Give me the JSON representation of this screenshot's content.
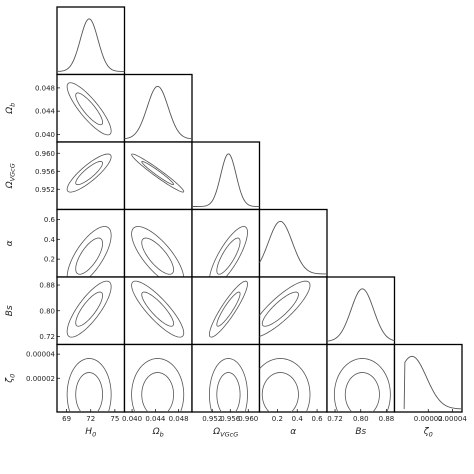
{
  "chart_data": {
    "type": "corner",
    "parameters": [
      {
        "key": "H0",
        "label": "H",
        "sub": "0",
        "range": [
          67.8,
          76.2
        ],
        "ticks": [
          69,
          72,
          75
        ],
        "tick_labels": [
          "69",
          "72",
          "75"
        ],
        "mean": 71.8,
        "sigma": 1.1
      },
      {
        "key": "Ob",
        "label": "Ω",
        "sub": "b",
        "range": [
          0.0387,
          0.0503
        ],
        "ticks": [
          0.04,
          0.044,
          0.048
        ],
        "tick_labels": [
          "0.040",
          "0.044",
          "0.048"
        ],
        "mean": 0.0444,
        "sigma": 0.0018
      },
      {
        "key": "OVGCG",
        "label": "Ω",
        "sub": "VGcG",
        "range": [
          0.9475,
          0.9625
        ],
        "ticks": [
          0.952,
          0.956,
          0.96
        ],
        "tick_labels": [
          "0.952",
          "0.956",
          "0.960"
        ],
        "mean": 0.9556,
        "sigma": 0.0017
      },
      {
        "key": "alpha",
        "label": "α",
        "sub": "",
        "range": [
          0.02,
          0.7
        ],
        "ticks": [
          0.2,
          0.4,
          0.6
        ],
        "tick_labels": [
          "0.2",
          "0.4",
          "0.6"
        ],
        "mean": 0.23,
        "sigma": 0.12
      },
      {
        "key": "Bs",
        "label": "Bs",
        "sub": "",
        "range": [
          0.695,
          0.905
        ],
        "ticks": [
          0.72,
          0.8,
          0.88
        ],
        "tick_labels": [
          "0.72",
          "0.80",
          "0.88"
        ],
        "mean": 0.805,
        "sigma": 0.035
      },
      {
        "key": "zeta0",
        "label": "ζ",
        "sub": "0",
        "range": [
          -8e-06,
          4.8e-05
        ],
        "ticks": [
          2e-05,
          4e-05
        ],
        "tick_labels": [
          "0.00002",
          "0.00004"
        ],
        "mean": 6.5e-06,
        "sigma": 1.2e-05
      }
    ],
    "correlations": [
      [
        1,
        -0.85,
        0.85,
        0.7,
        0.8,
        0.0
      ],
      [
        -0.85,
        1,
        -0.97,
        -0.75,
        -0.85,
        0.0
      ],
      [
        0.85,
        -0.97,
        1,
        0.8,
        0.9,
        0.0
      ],
      [
        0.7,
        -0.75,
        0.8,
        1,
        0.85,
        0.0
      ],
      [
        0.8,
        -0.85,
        0.9,
        0.85,
        1,
        0.0
      ],
      [
        0.0,
        0.0,
        0.0,
        0.0,
        0.0,
        1
      ]
    ],
    "contour_levels": [
      "1σ",
      "2σ"
    ],
    "grid": false
  }
}
